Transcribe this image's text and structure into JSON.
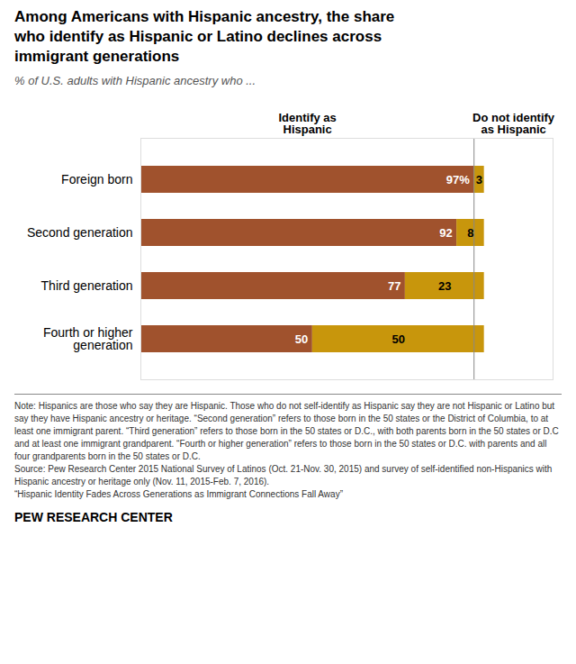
{
  "chart_data": {
    "type": "bar",
    "orientation": "horizontal",
    "stacked": true,
    "title": "Among Americans with Hispanic ancestry, the share\nwho identify as Hispanic or Latino declines across\nimmigrant generations",
    "subtitle": "% of U.S. adults with Hispanic ancestry who ...",
    "categories": [
      "Foreign born",
      "Second generation",
      "Third generation",
      "Fourth or higher\ngeneration"
    ],
    "series": [
      {
        "name": "Identify as\nHispanic",
        "color": "#A0522D",
        "values": [
          97,
          92,
          77,
          50
        ],
        "value_labels": [
          "97%",
          "92",
          "77",
          "50"
        ]
      },
      {
        "name": "Do not identify\nas Hispanic",
        "color": "#C8960C",
        "values": [
          3,
          8,
          23,
          50
        ]
      }
    ],
    "xlim": [
      0,
      120
    ],
    "divider_x": 97,
    "data_labels": true,
    "tick_labels": "y",
    "grid": false,
    "note": "Note: Hispanics are those who say they are Hispanic. Those who do not self-identify as Hispanic say they are not Hispanic or Latino but say they have Hispanic ancestry or heritage. “Second generation” refers to those born in the 50 states or the District of Columbia, to at least one immigrant parent. “Third generation” refers to those born in the 50 states or D.C., with both parents born in the 50 states or D.C and at least one immigrant grandparent. “Fourth or higher generation” refers to those born in the 50 states or D.C. with parents and all four grandparents born in the 50 states or D.C.\nSource: Pew Research Center 2015 National Survey of Latinos (Oct. 21-Nov. 30, 2015) and survey of self-identified non-Hispanics with Hispanic ancestry or heritage only (Nov. 11, 2015-Feb. 7, 2016).\n“Hispanic Identity Fades Across Generations as Immigrant Connections Fall Away”",
    "source": "PEW RESEARCH CENTER"
  }
}
